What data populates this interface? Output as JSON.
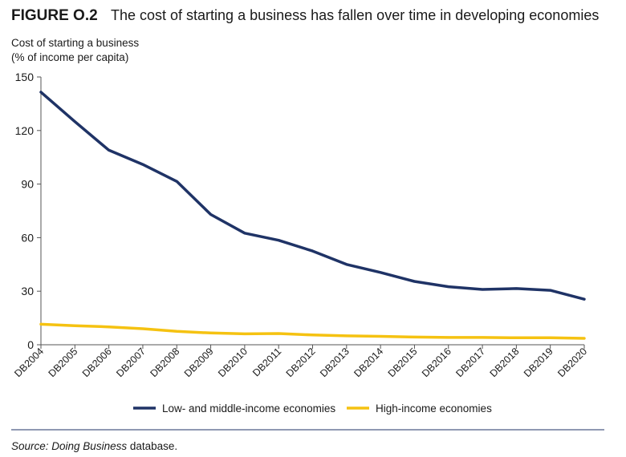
{
  "figure": {
    "number": "FIGURE O.2",
    "title": "The cost of starting a business has fallen over time in developing economies"
  },
  "source": {
    "prefix": "Source: ",
    "italic_name": "Doing Business",
    "suffix": " database."
  },
  "colors": {
    "low_middle": "#1f3366",
    "high": "#f5c211",
    "axis": "#555555"
  },
  "chart_data": {
    "type": "line",
    "title": "The cost of starting a business has fallen over time in developing economies",
    "ylabel_lines": [
      "Cost of starting a business",
      "(% of income per capita)"
    ],
    "xlabel": "",
    "categories": [
      "DB2004",
      "DB2005",
      "DB2006",
      "DB2007",
      "DB2008",
      "DB2009",
      "DB2010",
      "DB2011",
      "DB2012",
      "DB2013",
      "DB2014",
      "DB2015",
      "DB2016",
      "DB2017",
      "DB2018",
      "DB2019",
      "DB2020"
    ],
    "yticks": [
      0,
      30,
      60,
      90,
      120,
      150
    ],
    "ylim": [
      0,
      150
    ],
    "grid": false,
    "legend_position": "bottom",
    "series": [
      {
        "name": "Low- and middle-income economies",
        "color_key": "low_middle",
        "values": [
          141.5,
          125,
          109,
          101,
          91.5,
          73,
          62.5,
          58.5,
          52.5,
          45,
          40.5,
          35.5,
          32.5,
          31,
          31.5,
          30.5,
          25.5
        ]
      },
      {
        "name": "High-income economies",
        "color_key": "high",
        "values": [
          11.5,
          10.7,
          10,
          9,
          7.5,
          6.6,
          6.1,
          6.3,
          5.5,
          5,
          4.7,
          4.3,
          4.1,
          4.1,
          3.9,
          3.9,
          3.6
        ]
      }
    ]
  }
}
